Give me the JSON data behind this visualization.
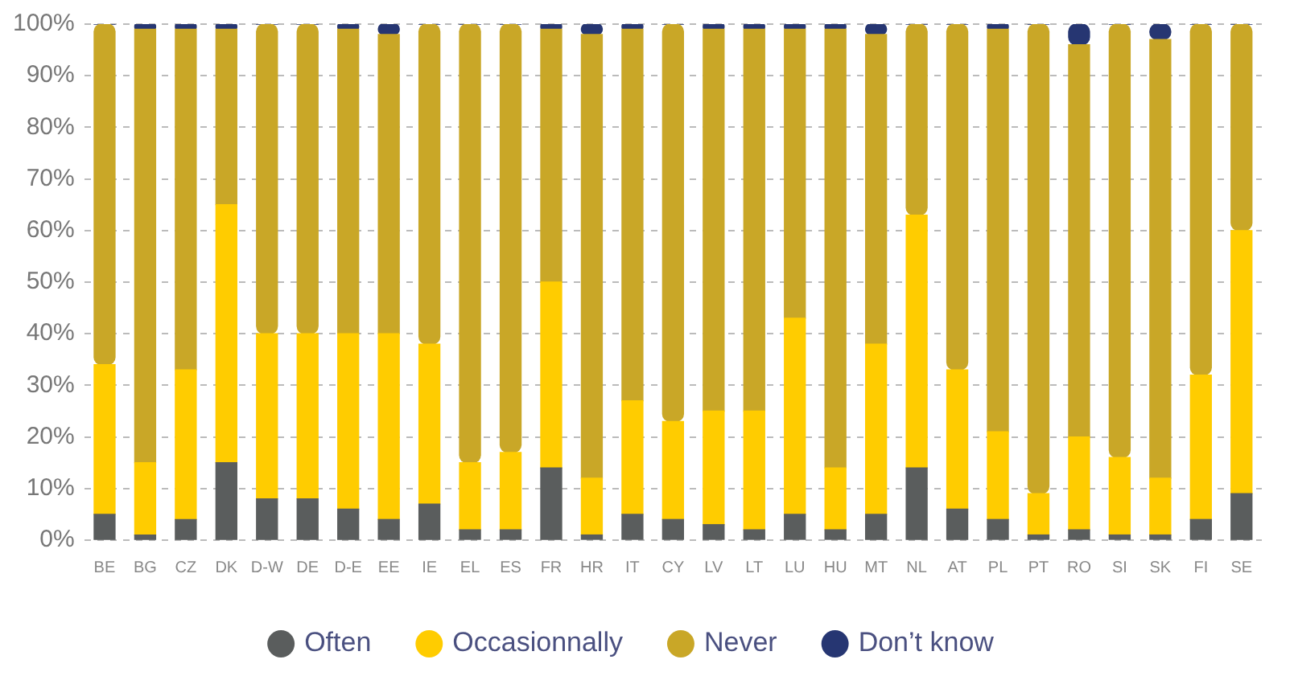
{
  "chart_data": {
    "type": "bar",
    "stacked": true,
    "categories": [
      "BE",
      "BG",
      "CZ",
      "DK",
      "D-W",
      "DE",
      "D-E",
      "EE",
      "IE",
      "EL",
      "ES",
      "FR",
      "HR",
      "IT",
      "CY",
      "LV",
      "LT",
      "LU",
      "HU",
      "MT",
      "NL",
      "AT",
      "PL",
      "PT",
      "RO",
      "SI",
      "SK",
      "FI",
      "SE"
    ],
    "series": [
      {
        "name": "Often",
        "color": "#5a5d5d",
        "values": [
          5,
          1,
          4,
          15,
          8,
          8,
          6,
          4,
          7,
          2,
          2,
          14,
          1,
          5,
          4,
          3,
          2,
          5,
          2,
          5,
          14,
          6,
          4,
          1,
          2,
          1,
          1,
          4,
          9
        ]
      },
      {
        "name": "Occasionnally",
        "color": "#ffcc00",
        "values": [
          29,
          14,
          29,
          50,
          32,
          32,
          34,
          36,
          31,
          13,
          15,
          36,
          11,
          22,
          19,
          22,
          23,
          38,
          12,
          33,
          49,
          27,
          17,
          8,
          18,
          15,
          11,
          28,
          51
        ]
      },
      {
        "name": "Never",
        "color": "#c9a727",
        "values": [
          66,
          84,
          66,
          34,
          60,
          60,
          59,
          58,
          62,
          85,
          83,
          49,
          86,
          72,
          77,
          74,
          74,
          56,
          85,
          60,
          37,
          67,
          78,
          91,
          76,
          84,
          85,
          68,
          40
        ]
      },
      {
        "name": "Don’t know",
        "color": "#263672",
        "values": [
          0,
          1,
          1,
          1,
          0,
          0,
          1,
          2,
          0,
          0,
          0,
          1,
          2,
          1,
          0,
          1,
          1,
          1,
          1,
          2,
          0,
          0,
          1,
          0,
          4,
          0,
          3,
          0,
          0
        ]
      }
    ],
    "ylim": [
      0,
      100
    ],
    "yticks": [
      {
        "value": 0,
        "label": "0%"
      },
      {
        "value": 10,
        "label": "10%"
      },
      {
        "value": 20,
        "label": "20%"
      },
      {
        "value": 30,
        "label": "30%"
      },
      {
        "value": 40,
        "label": "40%"
      },
      {
        "value": 50,
        "label": "50%"
      },
      {
        "value": 60,
        "label": "60%"
      },
      {
        "value": 70,
        "label": "70%"
      },
      {
        "value": 80,
        "label": "80%"
      },
      {
        "value": 90,
        "label": "90%"
      },
      {
        "value": 100,
        "label": "100%"
      }
    ],
    "grid": "y",
    "legend": "bottom"
  }
}
